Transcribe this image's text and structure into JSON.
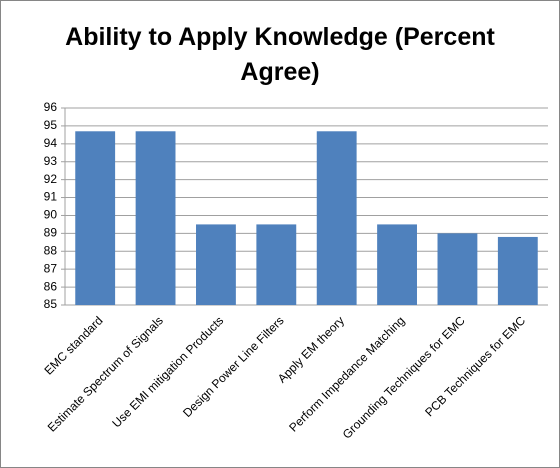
{
  "chart_data": {
    "type": "bar",
    "title": "Ability to Apply Knowledge (Percent Agree)",
    "categories": [
      "EMC standard",
      "Estimate Spectrum of Signals",
      "Use EMI mitigation Products",
      "Design Power Line Filters",
      "Apply EM theory",
      "Perform Impedance Matching",
      "Grounding Techniques for EMC",
      "PCB Techniques for EMC"
    ],
    "values": [
      94.7,
      94.7,
      89.5,
      89.5,
      94.7,
      89.5,
      89,
      88.8
    ],
    "color": "#4f81bd",
    "ylim": [
      85,
      96
    ],
    "yticks": [
      85,
      86,
      87,
      88,
      89,
      90,
      91,
      92,
      93,
      94,
      95,
      96
    ],
    "grid": true
  }
}
